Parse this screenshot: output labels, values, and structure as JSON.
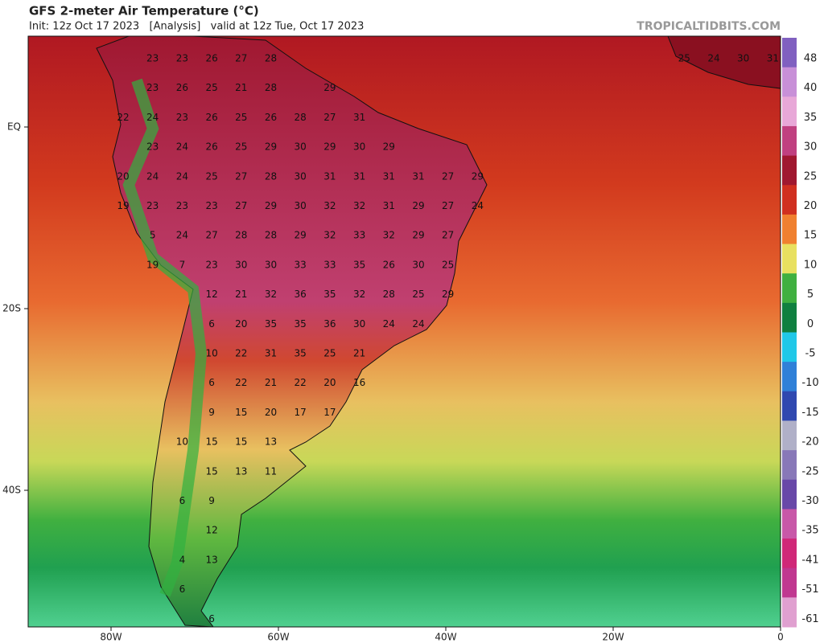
{
  "header": {
    "title": "GFS 2-meter Air Temperature (°C)",
    "subtitle": "Init: 12z Oct 17 2023   [Analysis]   valid at 12z Tue, Oct 17 2023",
    "watermark": "TROPICALTIDBITS.COM"
  },
  "map": {
    "lat_labels": [
      "EQ",
      "20S",
      "40S"
    ],
    "lon_labels": [
      "80W",
      "60W",
      "40W",
      "20W",
      "0"
    ],
    "labels": {
      "rows": [
        [
          null,
          23,
          23,
          26,
          27,
          28,
          null,
          null,
          null,
          null,
          null,
          null,
          null,
          null,
          null,
          null,
          null,
          null,
          null,
          25,
          24,
          30,
          31
        ],
        [
          null,
          23,
          26,
          25,
          21,
          28,
          null,
          29
        ],
        [
          22,
          24,
          23,
          26,
          25,
          26,
          28,
          27,
          31
        ],
        [
          null,
          23,
          24,
          26,
          25,
          29,
          30,
          29,
          30,
          29
        ],
        [
          20,
          24,
          24,
          25,
          27,
          28,
          30,
          31,
          31,
          31,
          31,
          27,
          29
        ],
        [
          19,
          23,
          23,
          23,
          27,
          29,
          30,
          32,
          32,
          31,
          29,
          27,
          24
        ],
        [
          null,
          5,
          24,
          27,
          28,
          28,
          29,
          32,
          33,
          32,
          29,
          27
        ],
        [
          null,
          19,
          7,
          23,
          30,
          30,
          33,
          33,
          35,
          26,
          30,
          25
        ],
        [
          null,
          null,
          null,
          12,
          21,
          32,
          36,
          35,
          32,
          28,
          25,
          29
        ],
        [
          null,
          null,
          null,
          6,
          20,
          35,
          35,
          36,
          30,
          24,
          24
        ],
        [
          null,
          null,
          null,
          10,
          22,
          31,
          35,
          25,
          21
        ],
        [
          null,
          null,
          null,
          6,
          22,
          21,
          22,
          20,
          16
        ],
        [
          null,
          null,
          null,
          9,
          15,
          20,
          17,
          17
        ],
        [
          null,
          null,
          10,
          15,
          15,
          13
        ],
        [
          null,
          null,
          null,
          15,
          13,
          11
        ],
        [
          null,
          null,
          6,
          9
        ],
        [
          null,
          null,
          null,
          12
        ],
        [
          null,
          null,
          4,
          13
        ],
        [
          null,
          null,
          6
        ],
        [
          null,
          null,
          null,
          6
        ]
      ]
    },
    "colorbar": {
      "labels": [
        48,
        40,
        35,
        30,
        25,
        20,
        15,
        10,
        5,
        0,
        -5,
        -10,
        -15,
        -20,
        -25,
        -30,
        -35,
        -41,
        -51,
        -61
      ],
      "colors": [
        "#8060c0",
        "#c890d8",
        "#e8a8d8",
        "#c04080",
        "#a01830",
        "#d03020",
        "#f08030",
        "#e8e060",
        "#40b040",
        "#108040",
        "#20c8e8",
        "#3080d8",
        "#3048b0",
        "#b0b0c8",
        "#8878b8",
        "#6848a8",
        "#c858a8",
        "#d02878",
        "#c03890",
        "#e0a0d0"
      ]
    }
  }
}
